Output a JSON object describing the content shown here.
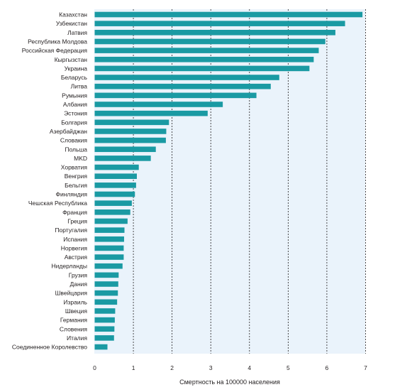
{
  "chart_data": {
    "type": "bar",
    "orientation": "horizontal",
    "categories": [
      "Казахстан",
      "Узбекистан",
      "Латвия",
      "Республика Молдова",
      "Российская Федерация",
      "Кыргызстан",
      "Украина",
      "Беларусь",
      "Литва",
      "Румыния",
      "Албания",
      "Эстония",
      "Болгария",
      "Азербайджан",
      "Словакия",
      "Польша",
      "MKD",
      "Хорватия",
      "Венгрия",
      "Бельгия",
      "Финляндия",
      "Чешская Республика",
      "Франция",
      "Греция",
      "Португалия",
      "Испания",
      "Норвегия",
      "Австрия",
      "Нидерланды",
      "Грузия",
      "Дания",
      "Швейцария",
      "Израиль",
      "Швеция",
      "Германия",
      "Словения",
      "Италия",
      "Соединенное Королевство"
    ],
    "values": [
      6.92,
      6.47,
      6.22,
      5.96,
      5.79,
      5.66,
      5.55,
      4.77,
      4.55,
      4.18,
      3.31,
      2.92,
      1.92,
      1.85,
      1.84,
      1.58,
      1.45,
      1.14,
      1.09,
      1.07,
      1.04,
      0.96,
      0.92,
      0.85,
      0.77,
      0.76,
      0.75,
      0.75,
      0.72,
      0.62,
      0.61,
      0.6,
      0.58,
      0.53,
      0.52,
      0.51,
      0.5,
      0.33
    ],
    "xlim": [
      0,
      7
    ],
    "xticks": [
      "0",
      "1",
      "2",
      "3",
      "4",
      "5",
      "6",
      "7"
    ],
    "xlabel": "Смертность на 100000 населения",
    "ylabel": "",
    "title": "",
    "grid": "vertical dashed",
    "colors": {
      "bar": "#1a9aa3",
      "plot_bg": "#eaf3fb",
      "grid": "#231f20"
    }
  }
}
